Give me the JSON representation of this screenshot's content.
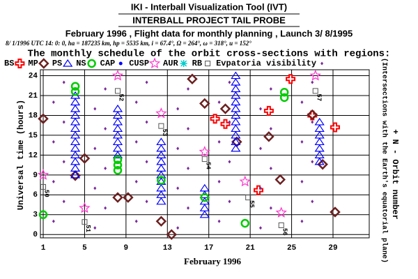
{
  "header": {
    "title": "IKI - Interball Visualization Tool (IVT)",
    "subtitle": "INTERBALL PROJECT TAIL PROBE"
  },
  "chart_data": {
    "type": "scatter",
    "title": "February 1996 ,  Flight data for monthly planning ,   Launch  3/ 8/1995",
    "parameters": "8/ 1/1996 UTC 14: 0: 0, ha = 187235 km, hp =    5535 km, i = 67.4°, Ω = 264°, ω = 318°, u = 152°",
    "subtitle": "The monthly schedule of the orbit cross-sections with regions:",
    "x_label": "February 1996",
    "y_label": "Universal time (hours)",
    "right_label": "+ N - Orbit number",
    "right_sublabel": "(Intersections with the Earth's equatorial plane)",
    "xlim": [
      0.73,
      32.5
    ],
    "xticks": [
      1,
      5,
      9,
      13,
      17,
      21,
      25,
      29
    ],
    "ylim": [
      -0.5,
      24.9
    ],
    "yticks": [
      0,
      3,
      6,
      9,
      12,
      15,
      18,
      21,
      24
    ],
    "grid": true,
    "series": [
      {
        "name": "BS",
        "marker": "cross",
        "color": "#ff0000",
        "x": [
          17.6,
          18.6,
          21.8,
          22.8,
          24.9,
          27.0,
          29.2
        ],
        "values": [
          17.5,
          16.7,
          6.7,
          18.7,
          23.5,
          18.0,
          16.2
        ]
      },
      {
        "name": "MP",
        "marker": "diamond",
        "color": "#6b2020",
        "x": [
          1,
          4.1,
          5,
          8.2,
          9.2,
          12.4,
          13.4,
          15.4,
          16.6,
          18.6,
          19.7,
          22.8,
          23.9,
          27,
          28,
          29.2
        ],
        "values": [
          17.5,
          8.9,
          11.5,
          5.6,
          5.6,
          2,
          0,
          23.5,
          19.8,
          19,
          14,
          14.8,
          8.3,
          18.1,
          10.6,
          3.4
        ]
      },
      {
        "name": "PS",
        "marker": "triangle",
        "color": "#0000ff",
        "x": [
          4.1,
          4.1,
          4.1,
          4.1,
          4.1,
          4.1,
          4.1,
          4.1,
          4.1,
          4.1,
          4.1,
          4.1,
          4.1,
          8.2,
          8.2,
          8.2,
          8.2,
          8.2,
          8.2,
          8.2,
          8.2,
          12.4,
          12.4,
          12.4,
          12.4,
          12.4,
          12.4,
          12.4,
          12.4,
          12.4,
          12.4,
          16.6,
          16.6,
          16.6,
          16.6,
          16.6,
          19.6,
          19.6,
          19.6,
          19.6,
          19.6,
          19.6,
          19.6,
          19.6,
          19.6,
          19.6,
          19.6,
          19.6,
          27.7,
          27.7,
          27.7,
          27.7,
          27.7,
          27.7,
          27.7
        ],
        "values": [
          9,
          10,
          11,
          12,
          13,
          14,
          15,
          16,
          17,
          18,
          19,
          20,
          21,
          12,
          13,
          14,
          15,
          16,
          17,
          18,
          19,
          5,
          6,
          7,
          8,
          9,
          10,
          11,
          12,
          13,
          14,
          3,
          4,
          5,
          6,
          7,
          13,
          14,
          15,
          16,
          17,
          18,
          19,
          20,
          21,
          22,
          23,
          24,
          11,
          12,
          13,
          14,
          15,
          16,
          17
        ]
      },
      {
        "name": "NS",
        "marker": "circle",
        "color": "#00cc00",
        "x": [
          1,
          4.1,
          4.1,
          8.2,
          8.2,
          8.2,
          12.4,
          16.6,
          20.5,
          24.3,
          24.3
        ],
        "values": [
          3,
          22.4,
          21.6,
          10.5,
          11.3,
          9.7,
          8.2,
          5.6,
          1.7,
          21.5,
          20.7
        ]
      },
      {
        "name": "CAP",
        "marker": "dot",
        "color": "#0000ff",
        "x": [],
        "values": []
      },
      {
        "name": "CUSP",
        "marker": "star",
        "color": "#ff33cc",
        "x": [
          1,
          5,
          8.2,
          12.4,
          16.6,
          20.5,
          24,
          27.3
        ],
        "values": [
          9,
          4,
          24,
          18.3,
          12.5,
          8,
          3.3,
          24
        ]
      },
      {
        "name": "AUR",
        "marker": "asterisk",
        "color": "#00cccc",
        "x": [],
        "values": []
      },
      {
        "name": "RB",
        "marker": "square",
        "color": "#555555",
        "x": [
          1,
          5,
          8.2,
          12.4,
          16.6,
          20.8,
          24,
          27.3
        ],
        "values": [
          7.2,
          1.9,
          21.7,
          16.4,
          11.4,
          5.6,
          1.4,
          21.7
        ],
        "labels": [
          "50",
          "51",
          "52",
          "53",
          "54",
          "55",
          "56",
          "57"
        ]
      },
      {
        "name": "Evpatoria visibility",
        "marker": "smalldiamond",
        "color": "#7a2a9a",
        "x": [
          2,
          2,
          2,
          2,
          3,
          3,
          3,
          3,
          6,
          6,
          6,
          6,
          7,
          7,
          7,
          7,
          10,
          10,
          10,
          10,
          11,
          11,
          11,
          11,
          14,
          14,
          14,
          14,
          15,
          15,
          15,
          15,
          18,
          18,
          18,
          18,
          19,
          19,
          19,
          19,
          22,
          22,
          22,
          22,
          23,
          23,
          23,
          23,
          26,
          26,
          26,
          26,
          27,
          27,
          27,
          27
        ],
        "values": [
          2,
          8,
          14,
          20,
          5,
          11,
          17,
          23,
          1,
          7,
          13,
          19,
          4,
          10,
          16,
          22,
          2,
          8,
          14,
          20,
          5,
          11,
          17,
          23,
          1,
          7,
          13,
          19,
          4,
          10,
          16,
          22,
          2,
          8,
          14,
          20,
          5,
          11,
          17,
          23,
          1,
          7,
          13,
          19,
          4,
          10,
          16,
          22,
          2,
          8,
          14,
          20,
          5,
          11,
          17,
          23
        ]
      }
    ]
  }
}
